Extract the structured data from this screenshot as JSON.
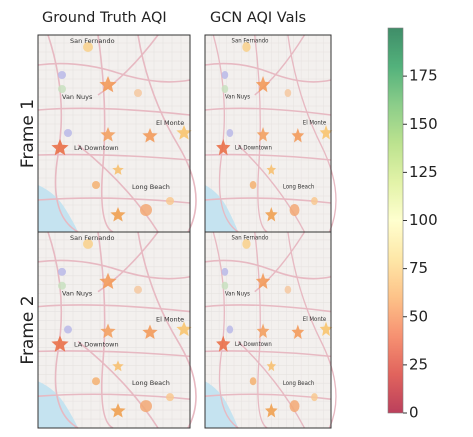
{
  "columns": [
    "Ground Truth AQI",
    "GCN AQI Vals"
  ],
  "rows": [
    "Frame 1",
    "Frame 2"
  ],
  "places": [
    "San Fernando",
    "Van Nuys",
    "El Monte",
    "LA Downtown",
    "Long Beach"
  ],
  "colorbar": {
    "colormap": "RdYlGn",
    "lim": [
      0,
      200
    ],
    "ticks": [
      0,
      25,
      50,
      75,
      100,
      125,
      150,
      175
    ]
  }
}
